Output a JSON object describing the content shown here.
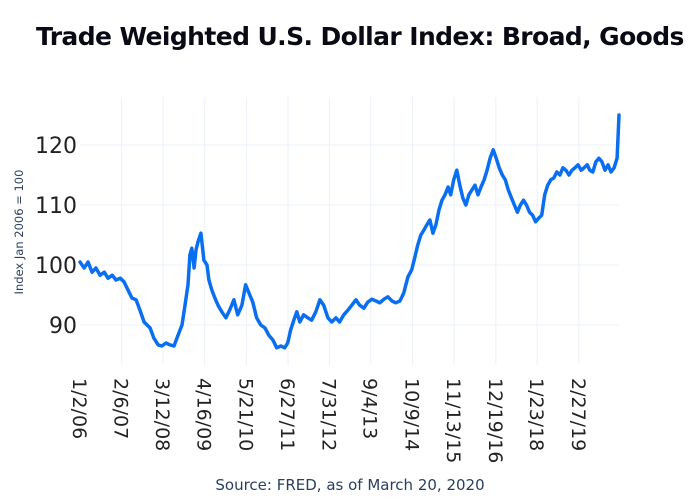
{
  "chart_data": {
    "type": "line",
    "title": "Trade Weighted U.S. Dollar Index: Broad, Goods",
    "xlabel": "Source: FRED, as of March 20, 2020",
    "ylabel": "Index Jan 2006 = 100",
    "xlim": [
      2006.0,
      2020.22
    ],
    "ylim": [
      84.0,
      128.5
    ],
    "grid": true,
    "line_color": "#0a6ef0",
    "y_ticks": [
      {
        "value": 90,
        "label": "90"
      },
      {
        "value": 100,
        "label": "100"
      },
      {
        "value": 110,
        "label": "110"
      },
      {
        "value": 120,
        "label": "120"
      }
    ],
    "x_ticks": [
      {
        "value": 2006.0,
        "label": "1/2/06"
      },
      {
        "value": 2007.1,
        "label": "2/6/07"
      },
      {
        "value": 2008.19,
        "label": "3/12/08"
      },
      {
        "value": 2009.29,
        "label": "4/16/09"
      },
      {
        "value": 2010.39,
        "label": "5/21/10"
      },
      {
        "value": 2011.49,
        "label": "6/27/11"
      },
      {
        "value": 2012.58,
        "label": "7/31/12"
      },
      {
        "value": 2013.67,
        "label": "9/4/13"
      },
      {
        "value": 2014.77,
        "label": "10/9/14"
      },
      {
        "value": 2015.87,
        "label": "11/13/15"
      },
      {
        "value": 2016.97,
        "label": "12/19/16"
      },
      {
        "value": 2018.06,
        "label": "1/23/18"
      },
      {
        "value": 2019.16,
        "label": "2/27/19"
      }
    ],
    "series": [
      {
        "name": "Trade Weighted U.S. Dollar Index: Broad, Goods",
        "x": [
          2006.0,
          2006.11,
          2006.21,
          2006.32,
          2006.42,
          2006.53,
          2006.64,
          2006.74,
          2006.85,
          2006.95,
          2007.06,
          2007.16,
          2007.27,
          2007.37,
          2007.48,
          2007.58,
          2007.69,
          2007.77,
          2007.85,
          2007.95,
          2008.06,
          2008.16,
          2008.27,
          2008.37,
          2008.48,
          2008.58,
          2008.69,
          2008.77,
          2008.85,
          2008.9,
          2008.95,
          2009.01,
          2009.06,
          2009.11,
          2009.19,
          2009.27,
          2009.35,
          2009.4,
          2009.48,
          2009.56,
          2009.64,
          2009.74,
          2009.85,
          2009.95,
          2010.06,
          2010.16,
          2010.27,
          2010.37,
          2010.48,
          2010.56,
          2010.66,
          2010.77,
          2010.88,
          2010.98,
          2011.09,
          2011.19,
          2011.3,
          2011.4,
          2011.48,
          2011.56,
          2011.64,
          2011.72,
          2011.8,
          2011.9,
          2012.01,
          2012.11,
          2012.22,
          2012.33,
          2012.43,
          2012.54,
          2012.64,
          2012.75,
          2012.85,
          2012.96,
          2013.07,
          2013.17,
          2013.28,
          2013.38,
          2013.49,
          2013.59,
          2013.7,
          2013.81,
          2013.91,
          2014.02,
          2014.12,
          2014.23,
          2014.33,
          2014.44,
          2014.54,
          2014.65,
          2014.75,
          2014.83,
          2014.91,
          2014.99,
          2015.07,
          2015.15,
          2015.23,
          2015.31,
          2015.39,
          2015.47,
          2015.55,
          2015.63,
          2015.71,
          2015.78,
          2015.86,
          2015.94,
          2016.02,
          2016.1,
          2016.18,
          2016.26,
          2016.34,
          2016.42,
          2016.5,
          2016.58,
          2016.66,
          2016.74,
          2016.82,
          2016.9,
          2016.98,
          2017.06,
          2017.14,
          2017.22,
          2017.3,
          2017.38,
          2017.46,
          2017.54,
          2017.62,
          2017.7,
          2017.78,
          2017.86,
          2017.94,
          2018.02,
          2018.1,
          2018.18,
          2018.26,
          2018.34,
          2018.42,
          2018.5,
          2018.58,
          2018.66,
          2018.74,
          2018.82,
          2018.9,
          2018.98,
          2019.06,
          2019.14,
          2019.22,
          2019.3,
          2019.38,
          2019.45,
          2019.53,
          2019.61,
          2019.69,
          2019.77,
          2019.85,
          2019.93,
          2020.01,
          2020.09,
          2020.17,
          2020.19,
          2020.22
        ],
        "y": [
          100.5,
          99.5,
          100.5,
          98.8,
          99.5,
          98.3,
          98.8,
          97.8,
          98.3,
          97.5,
          97.8,
          97.2,
          95.8,
          94.5,
          94.2,
          92.5,
          90.5,
          90.0,
          89.5,
          87.8,
          86.7,
          86.5,
          87.0,
          86.7,
          86.5,
          88.2,
          90.0,
          93.3,
          96.7,
          101.7,
          102.8,
          99.5,
          102.5,
          103.8,
          105.3,
          100.8,
          100.0,
          97.5,
          95.8,
          94.5,
          93.3,
          92.2,
          91.2,
          92.5,
          94.2,
          91.7,
          93.3,
          96.7,
          95.0,
          93.8,
          91.2,
          90.0,
          89.5,
          88.3,
          87.5,
          86.2,
          86.5,
          86.2,
          87.0,
          89.2,
          90.8,
          92.2,
          90.5,
          91.7,
          91.2,
          90.8,
          92.2,
          94.2,
          93.3,
          91.2,
          90.5,
          91.2,
          90.5,
          91.7,
          92.5,
          93.3,
          94.2,
          93.3,
          92.8,
          93.8,
          94.3,
          94.0,
          93.7,
          94.3,
          94.7,
          94.0,
          93.7,
          94.0,
          95.3,
          98.0,
          99.2,
          101.2,
          103.3,
          105.0,
          105.8,
          106.7,
          107.5,
          105.3,
          106.7,
          109.2,
          110.8,
          111.7,
          113.0,
          111.7,
          114.2,
          115.8,
          113.3,
          111.2,
          110.0,
          111.7,
          112.5,
          113.3,
          111.7,
          113.0,
          114.2,
          115.8,
          117.8,
          119.2,
          117.8,
          116.2,
          115.0,
          114.2,
          112.5,
          111.2,
          110.0,
          108.8,
          110.0,
          110.8,
          110.0,
          108.8,
          108.3,
          107.2,
          107.8,
          108.3,
          111.7,
          113.3,
          114.2,
          114.5,
          115.5,
          115.0,
          116.2,
          115.8,
          115.0,
          115.8,
          116.2,
          116.7,
          115.8,
          116.2,
          116.7,
          115.8,
          115.5,
          117.2,
          117.8,
          117.2,
          115.8,
          116.7,
          115.5,
          116.2,
          117.8,
          120.8,
          125.0
        ]
      }
    ]
  }
}
